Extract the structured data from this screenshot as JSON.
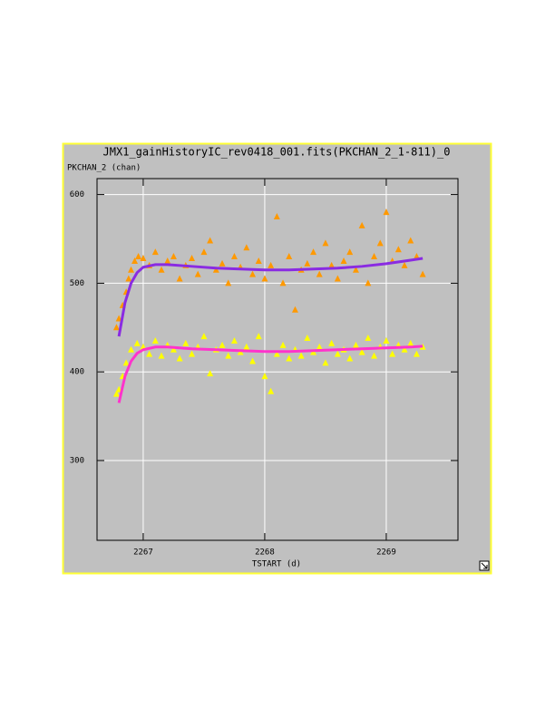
{
  "chart_data": {
    "type": "scatter",
    "title": "JMX1_gainHistoryIC_rev0418_001.fits(PKCHAN_2_1-811)_0",
    "y_label": "PKCHAN_2 (chan)",
    "x_label": "TSTART (d)",
    "xlim": [
      2266.62,
      2269.59
    ],
    "ylim": [
      210,
      618
    ],
    "xticks": [
      2267,
      2268,
      2269
    ],
    "yticks": [
      300,
      400,
      500,
      600
    ],
    "grid": true,
    "series": [
      {
        "kind": "scatter",
        "color": "#ff9900",
        "x": [
          2266.78,
          2266.8,
          2266.83,
          2266.86,
          2266.88,
          2266.9,
          2266.93,
          2266.96,
          2267.0,
          2267.05,
          2267.1,
          2267.15,
          2267.2,
          2267.25,
          2267.3,
          2267.35,
          2267.4,
          2267.45,
          2267.5,
          2267.55,
          2267.6,
          2267.65,
          2267.7,
          2267.75,
          2267.8,
          2267.85,
          2267.9,
          2267.95,
          2268.0,
          2268.05,
          2268.1,
          2268.15,
          2268.2,
          2268.25,
          2268.3,
          2268.35,
          2268.4,
          2268.45,
          2268.5,
          2268.55,
          2268.6,
          2268.65,
          2268.7,
          2268.75,
          2268.8,
          2268.85,
          2268.9,
          2268.95,
          2269.0,
          2269.05,
          2269.1,
          2269.15,
          2269.2,
          2269.25,
          2269.3
        ],
        "values": [
          450,
          460,
          475,
          490,
          505,
          515,
          525,
          530,
          528,
          520,
          535,
          515,
          525,
          530,
          505,
          520,
          528,
          510,
          535,
          548,
          515,
          522,
          500,
          530,
          518,
          540,
          510,
          525,
          505,
          520,
          575,
          500,
          530,
          470,
          515,
          522,
          535,
          510,
          545,
          520,
          505,
          525,
          535,
          515,
          565,
          500,
          530,
          545,
          580,
          525,
          538,
          520,
          548,
          530,
          510
        ]
      },
      {
        "kind": "scatter",
        "color": "#ffff00",
        "x": [
          2266.78,
          2266.8,
          2266.83,
          2266.86,
          2266.9,
          2266.95,
          2267.0,
          2267.05,
          2267.1,
          2267.15,
          2267.2,
          2267.25,
          2267.3,
          2267.35,
          2267.4,
          2267.45,
          2267.5,
          2267.55,
          2267.6,
          2267.65,
          2267.7,
          2267.75,
          2267.8,
          2267.85,
          2267.9,
          2267.95,
          2268.0,
          2268.05,
          2268.1,
          2268.15,
          2268.2,
          2268.25,
          2268.3,
          2268.35,
          2268.4,
          2268.45,
          2268.5,
          2268.55,
          2268.6,
          2268.65,
          2268.7,
          2268.75,
          2268.8,
          2268.85,
          2268.9,
          2268.95,
          2269.0,
          2269.05,
          2269.1,
          2269.15,
          2269.2,
          2269.25,
          2269.3
        ],
        "values": [
          375,
          380,
          395,
          410,
          425,
          432,
          428,
          420,
          435,
          418,
          430,
          425,
          415,
          432,
          420,
          428,
          440,
          398,
          425,
          430,
          418,
          435,
          422,
          428,
          412,
          440,
          395,
          378,
          420,
          430,
          415,
          425,
          418,
          438,
          422,
          428,
          410,
          432,
          420,
          425,
          415,
          430,
          422,
          438,
          418,
          428,
          435,
          420,
          430,
          425,
          432,
          420,
          428
        ]
      },
      {
        "kind": "line",
        "color": "#8a2be2",
        "x": [
          2266.8,
          2266.85,
          2266.9,
          2266.95,
          2267.0,
          2267.1,
          2267.2,
          2267.4,
          2267.6,
          2267.8,
          2268.0,
          2268.2,
          2268.4,
          2268.6,
          2268.8,
          2269.0,
          2269.2,
          2269.3
        ],
        "values": [
          440,
          478,
          500,
          512,
          518,
          521,
          521,
          519,
          517,
          516,
          515,
          515,
          516,
          517,
          519,
          522,
          526,
          528
        ]
      },
      {
        "kind": "line",
        "color": "#ff33cc",
        "x": [
          2266.8,
          2266.85,
          2266.9,
          2266.95,
          2267.0,
          2267.1,
          2267.2,
          2267.4,
          2267.6,
          2267.8,
          2268.0,
          2268.2,
          2268.4,
          2268.6,
          2268.8,
          2269.0,
          2269.2,
          2269.3
        ],
        "values": [
          365,
          395,
          412,
          421,
          425,
          428,
          428,
          426,
          425,
          424,
          423,
          423,
          424,
          425,
          426,
          427,
          428,
          429
        ]
      }
    ]
  }
}
